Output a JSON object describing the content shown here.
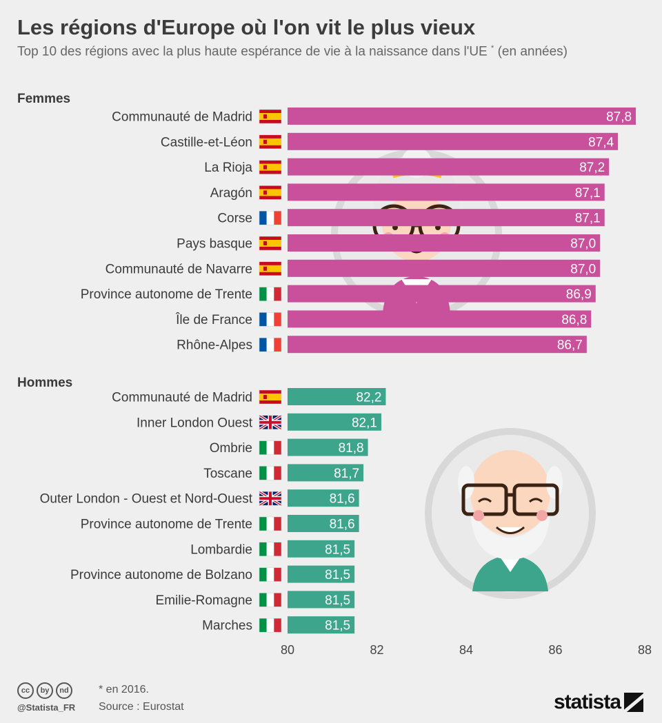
{
  "title": "Les régions d'Europe où l'on vit le plus vieux",
  "subtitle": "Top 10 des régions avec la plus haute espérance de vie à la naissance dans l'UE",
  "subtitle_mark": "*",
  "subtitle_unit": " (en années)",
  "chart_data": {
    "type": "bar",
    "orientation": "horizontal",
    "xlim": [
      80,
      88
    ],
    "ticks": [
      "80",
      "82",
      "84",
      "86",
      "88"
    ],
    "series": [
      {
        "name": "Femmes",
        "color": "#c9509b",
        "categories": [
          "Communauté de Madrid",
          "Castille-et-Léon",
          "La Rioja",
          "Aragón",
          "Corse",
          "Pays basque",
          "Communauté de Navarre",
          "Province autonome de Trente",
          "Île de France",
          "Rhône-Alpes"
        ],
        "flags": [
          "es",
          "es",
          "es",
          "es",
          "fr",
          "es",
          "es",
          "it",
          "fr",
          "fr"
        ],
        "values": [
          87.8,
          87.4,
          87.2,
          87.1,
          87.1,
          87.0,
          87.0,
          86.9,
          86.8,
          86.7
        ],
        "labels": [
          "87,8",
          "87,4",
          "87,2",
          "87,1",
          "87,1",
          "87,0",
          "87,0",
          "86,9",
          "86,8",
          "86,7"
        ]
      },
      {
        "name": "Hommes",
        "color": "#3ea58d",
        "categories": [
          "Communauté de Madrid",
          "Inner London Ouest",
          "Ombrie",
          "Toscane",
          "Outer London - Ouest et Nord-Ouest",
          "Province autonome de Trente",
          "Lombardie",
          "Province autonome de Bolzano",
          "Emilie-Romagne",
          "Marches"
        ],
        "flags": [
          "es",
          "uk",
          "it",
          "it",
          "uk",
          "it",
          "it",
          "it",
          "it",
          "it"
        ],
        "values": [
          82.2,
          82.1,
          81.8,
          81.7,
          81.6,
          81.6,
          81.5,
          81.5,
          81.5,
          81.5
        ],
        "labels": [
          "82,2",
          "82,1",
          "81,8",
          "81,7",
          "81,6",
          "81,6",
          "81,5",
          "81,5",
          "81,5",
          "81,5"
        ]
      }
    ]
  },
  "footer": {
    "note": "* en 2016.",
    "source": "Source : Eurostat",
    "handle": "@Statista_FR",
    "brand": "statista",
    "license_icons": [
      "cc",
      "by",
      "nd"
    ]
  },
  "flag_colors": {
    "es": [
      "#c60b1e",
      "#ffc400"
    ],
    "fr": [
      "#0055a4",
      "#ffffff",
      "#ef4135"
    ],
    "it": [
      "#009246",
      "#ffffff",
      "#ce2b37"
    ],
    "uk": [
      "#012169",
      "#ffffff",
      "#c8102e"
    ]
  }
}
